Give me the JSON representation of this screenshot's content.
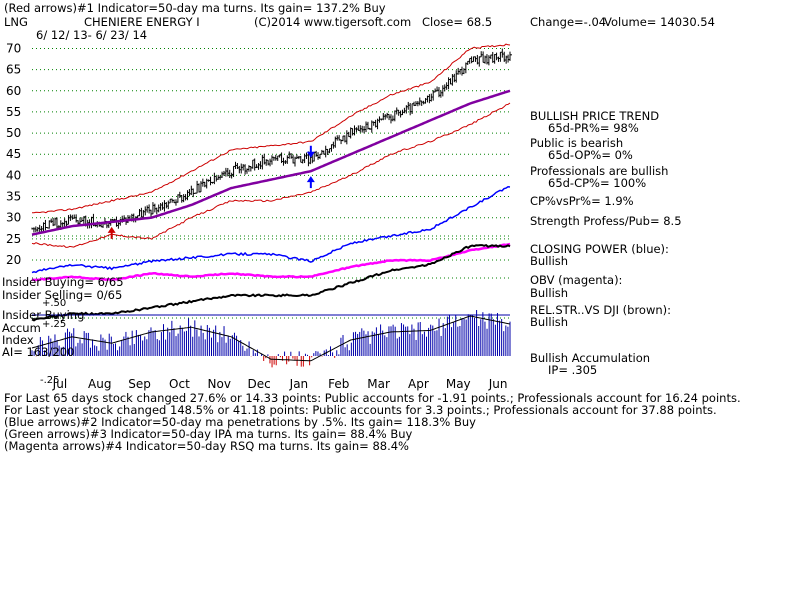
{
  "header": {
    "line1": "(Red arrows)#1 Indicator=50-day ma turns. Its gain= 137.2% Buy",
    "ticker": "LNG",
    "company": "CHENIERE ENERGY I",
    "copyright": "(C)2014 www.tigersoft.com",
    "close": "Close= 68.5",
    "change": "Change=-.04",
    "volume": "Volume= 14030.54",
    "date_range": "6/ 12/ 13- 6/ 23/ 14"
  },
  "left_labels": {
    "insider_buying_count": "Insider Buying= 6/65",
    "insider_selling_count": "Insider Selling= 0/65",
    "accum_plus50": "+.50",
    "accum_plus25": "+.25",
    "insider_buying": "Insider Buying",
    "accum": "Accum",
    "index": "Index",
    "ai": "AI= 163/200",
    "accum_minus25": "-.25"
  },
  "right_panel": {
    "bullish_trend": "BULLISH PRICE TREND",
    "pr": "65d-PR%= 98%",
    "public_bearish": "Public is bearish",
    "op": "65d-OP%= 0%",
    "prof_bullish": "Professionals are bullish",
    "cp": "65d-CP%= 100%",
    "cpvspr": "CP%vsPr%= 1.9%",
    "strength": "Strength Profess/Pub= 8.5",
    "closing_power_label": "CLOSING POWER (blue):",
    "closing_power_val": "Bullish",
    "obv_label": "OBV (magenta):",
    "obv_val": "Bullish",
    "relstr_label": "REL.STR..VS DJI (brown):",
    "relstr_val": "Bullish",
    "accum_label": "Bullish Accumulation",
    "ip": "IP= .305"
  },
  "footer": {
    "line1": "For Last 65 days stock changed  27.6% or  14.33 points:  Public accounts for -1.91 points.;  Professionals account for  16.24 points.",
    "line2": "For Last year stock changed  148.5% or  41.18 points:  Public accounts for  3.3 points.;  Professionals account for  37.88 points.",
    "line3": "(Blue arrows)#2 Indicator=50-day ma penetrations by .5%. Its gain= 118.3% Buy",
    "line4": "(Green arrows)#3 Indicator=50-day IPA ma turns. Its gain= 88.4% Buy",
    "line5": "(Magenta arrows)#4 Indicator=50-day RSQ ma turns. Its gain= 88.4%"
  },
  "colors": {
    "price": "#000000",
    "bands": "#cc0000",
    "ma": "#8000a0",
    "closing_power": "#0000ff",
    "obv": "#ff00ff",
    "relstr": "#000000",
    "accum": "#0000aa",
    "accum_neg": "#cc0000",
    "grid": "#008000"
  },
  "chart_data": {
    "type": "line",
    "title": "CHENIERE ENERGY I",
    "ylim": [
      20,
      72
    ],
    "y_ticks": [
      70,
      65,
      60,
      55,
      50,
      45,
      40,
      35,
      30,
      25,
      20
    ],
    "x_month_labels": [
      "Jul",
      "Aug",
      "Sep",
      "Oct",
      "Nov",
      "Dec",
      "Jan",
      "Feb",
      "Mar",
      "Apr",
      "May",
      "Jun"
    ],
    "x": [
      "Jun 13",
      "Jul 13",
      "Aug 13",
      "Sep 13",
      "Oct 13",
      "Nov 13",
      "Dec 13",
      "Jan 14",
      "Feb 14",
      "Mar 14",
      "Apr 14",
      "May 14",
      "Jun 14"
    ],
    "series": [
      {
        "name": "price",
        "values": [
          27.5,
          29.5,
          28.5,
          32,
          36,
          41,
          44,
          44,
          50,
          54,
          58,
          67,
          68.5
        ]
      },
      {
        "name": "50-day ma",
        "values": [
          26,
          28,
          29,
          30,
          33,
          37,
          39,
          41,
          45,
          49,
          53,
          57,
          60
        ]
      },
      {
        "name": "upper band",
        "values": [
          31,
          32,
          34,
          36,
          41,
          46,
          47,
          48,
          54,
          59,
          62,
          70,
          71
        ]
      },
      {
        "name": "lower band",
        "values": [
          24,
          23,
          26,
          25,
          30,
          34,
          34,
          36,
          40,
          45,
          48,
          52,
          57
        ]
      }
    ],
    "arrows": [
      {
        "color": "red",
        "direction": "up",
        "x": "Aug 13",
        "y": 25
      },
      {
        "color": "blue",
        "direction": "down",
        "x": "Jan 14",
        "y": 47
      },
      {
        "color": "blue",
        "direction": "up",
        "x": "Jan 14",
        "y": 37
      }
    ],
    "accum_ylim": [
      -0.25,
      0.5
    ]
  }
}
